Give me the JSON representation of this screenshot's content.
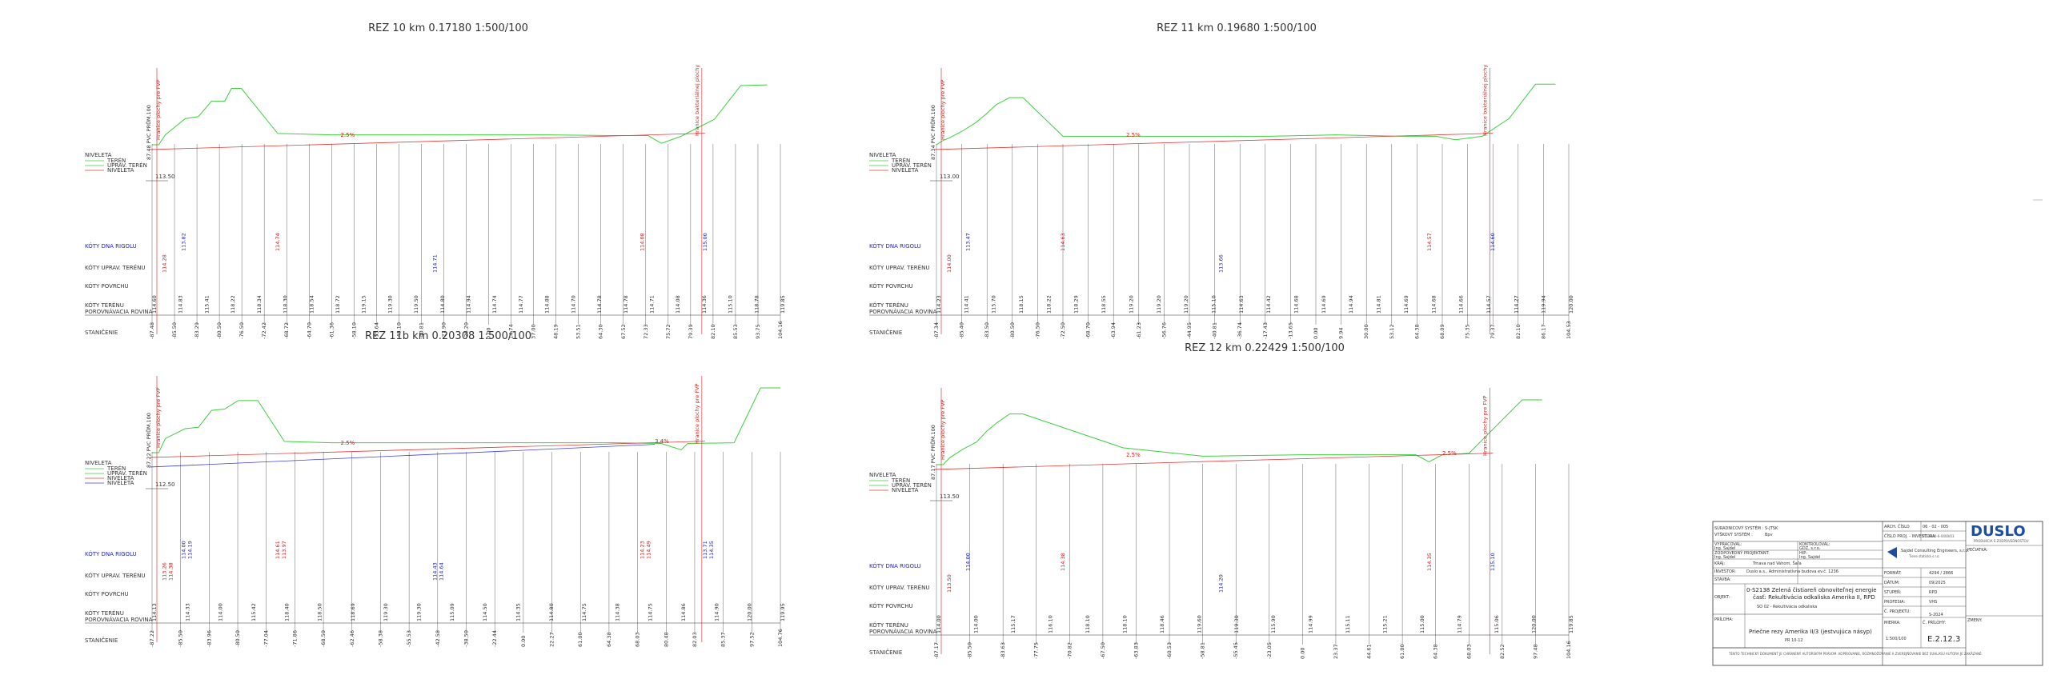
{
  "sections": [
    {
      "id": "rez10",
      "title": "REZ 10  km  0.17180  1:500/100",
      "datum": "113.50",
      "vertical_label": "87.48 PVC  PRŮM.100",
      "boundary_label": "Hranice plochy pre FVP",
      "boundary_label_right": "Hranice  bakteriálnej  plochy",
      "slope_labels": [
        "2.5%"
      ],
      "legend": [
        "TERÉN",
        "UPRAV. TERÉN",
        "NIVELETA"
      ],
      "legend_title": "NIVELETA",
      "rows": [
        "KÓTY DNA RIGOLU",
        "KÓTY UPRAV. TERÉNU",
        "KÓTY POVRCHU",
        "KÓTY TERÉNU\nPOROVNÁVACIA ROVINA",
        "STANIČENIE"
      ],
      "station_labels": [
        "-87.48",
        "-85.50",
        "-83.29",
        "-80.50",
        "-76.50",
        "-72.42",
        "-68.72",
        "-64.70",
        "-61.36",
        "-58.10",
        "-55.64",
        "-43.10",
        "-40.81",
        "-27.90",
        "-26.20",
        "0.00",
        "14.74",
        "37.00",
        "48.19",
        "53.51",
        "64.30",
        "67.52",
        "72.33",
        "75.72",
        "79.39",
        "82.10",
        "85.53",
        "93.75",
        "104.16"
      ],
      "terrain_labels": [
        "114.60",
        "114.83",
        "115.41",
        "118.22",
        "118.34",
        "118.30",
        "118.54",
        "118.72",
        "119.15",
        "119.30",
        "119.50",
        "114.80",
        "114.94",
        "114.74",
        "114.77",
        "114.88",
        "114.70",
        "114.78",
        "114.78",
        "114.71",
        "114.08",
        "114.36",
        "115.10",
        "118.78",
        "119.85"
      ],
      "special_labels": [
        "114.28",
        "113.82",
        "114.74",
        "114.71",
        "114.08",
        "115.00"
      ]
    },
    {
      "id": "rez11",
      "title": "REZ 11  km  0.19680  1:500/100",
      "datum": "113.00",
      "vertical_label": "87.34 PVC  PRŮM.100",
      "boundary_label": "Hranice plochy pre FVP",
      "boundary_label_right": "Hranice  bakteriálnej  plochy",
      "slope_labels": [
        "2.5%"
      ],
      "legend": [
        "TERÉN",
        "UPRAV. TERÉN",
        "NIVELETA"
      ],
      "legend_title": "NIVELETA",
      "rows": [
        "KÓTY DNA RIGOLU",
        "KÓTY UPRAV. TERÉNU",
        "KÓTY POVRCHU",
        "KÓTY TERÉNU\nPOROVNÁVACIA ROVINA",
        "STANIČENIE"
      ],
      "station_labels": [
        "-87.34",
        "-85.40",
        "-83.50",
        "-80.50",
        "-76.50",
        "-72.50",
        "-68.70",
        "-63.94",
        "-61.23",
        "-56.76",
        "-44.95",
        "-40.81",
        "-36.74",
        "-17.43",
        "-13.65",
        "0.00",
        "9.94",
        "30.00",
        "53.12",
        "64.38",
        "68.09",
        "75.35",
        "79.37",
        "82.10",
        "86.17",
        "104.53"
      ],
      "terrain_labels": [
        "114.23",
        "114.41",
        "115.70",
        "118.15",
        "118.22",
        "118.29",
        "118.55",
        "119.20",
        "119.20",
        "119.20",
        "115.10",
        "114.63",
        "114.42",
        "114.68",
        "114.69",
        "114.94",
        "114.81",
        "114.69",
        "114.68",
        "114.66",
        "114.57",
        "114.27",
        "119.94",
        "120.00"
      ],
      "special_labels": [
        "114.00",
        "113.47",
        "114.63",
        "113.66",
        "114.57",
        "114.60"
      ]
    },
    {
      "id": "rez11b",
      "title": "REZ 11b  km  0.20308  1:500/100",
      "datum": "112.50",
      "vertical_label": "87.22 PVC  PRŮM.100",
      "boundary_label": "Hranice plochy pre FVP",
      "boundary_label_right": "Hranice plochy pre FVP",
      "slope_labels": [
        "2.5%",
        "3.4%"
      ],
      "legend": [
        "TERÉN",
        "UPRAV. TERÉN",
        "NIVELETA",
        "NIVELETA"
      ],
      "legend_title": "NIVELETA",
      "rows": [
        "KÓTY DNA RIGOLU",
        "KÓTY UPRAV. TERÉNU",
        "KÓTY POVRCHU",
        "KÓTY TERÉNU\nPOROVNÁVACIA ROVINA",
        "STANIČENIE"
      ],
      "station_labels": [
        "-87.22",
        "-85.50",
        "-83.96",
        "-80.50",
        "-77.04",
        "-71.86",
        "-68.50",
        "-62.46",
        "-58.38",
        "-55.53",
        "-42.58",
        "-38.50",
        "-22.44",
        "0.00",
        "22.27",
        "61.00",
        "64.38",
        "68.03",
        "80.48",
        "82.03",
        "85.37",
        "97.52",
        "104.76"
      ],
      "terrain_labels": [
        "114.13",
        "114.33",
        "114.00",
        "115.42",
        "118.40",
        "118.50",
        "118.69",
        "119.30",
        "119.30",
        "115.09",
        "114.50",
        "114.35",
        "114.80",
        "114.75",
        "114.38",
        "114.75",
        "114.86",
        "114.90",
        "120.00",
        "119.95"
      ],
      "special_labels": [
        "113.26",
        "114.00",
        "114.61",
        "114.43",
        "114.23",
        "113.71",
        "114.38",
        "114.19",
        "113.97",
        "114.64",
        "114.49",
        "114.35"
      ]
    },
    {
      "id": "rez12",
      "title": "REZ 12  km  0.22429  1:500/100",
      "datum": "113.50",
      "vertical_label": "87.17 PVC  PRŮM.100",
      "boundary_label": "Hranice plochy pre FVP",
      "boundary_label_right": "Hranice plochy pre FVP",
      "slope_labels": [
        "2.5%",
        "2.5%"
      ],
      "legend": [
        "TERÉN",
        "UPRAV. TERÉN",
        "NIVELETA"
      ],
      "legend_title": "NIVELETA",
      "rows": [
        "KÓTY DNA RIGOLU",
        "KÓTY UPRAV. TERÉNU",
        "KÓTY POVRCHU",
        "KÓTY TERÉNU\nPOROVNÁVACIA ROVINA",
        "STANIČENIE"
      ],
      "station_labels": [
        "-87.17",
        "-85.50",
        "-83.63",
        "-77.75",
        "-70.82",
        "-67.50",
        "-63.83",
        "-60.53",
        "-58.81",
        "-55.45",
        "-23.05",
        "0.00",
        "23.37",
        "44.61",
        "61.00",
        "64.38",
        "68.03",
        "82.52",
        "97.48",
        "104.16"
      ],
      "terrain_labels": [
        "114.00",
        "114.00",
        "115.17",
        "116.10",
        "118.10",
        "118.10",
        "118.46",
        "119.60",
        "119.30",
        "115.90",
        "114.99",
        "115.11",
        "115.21",
        "115.00",
        "114.79",
        "115.06",
        "120.00",
        "119.85"
      ],
      "special_labels": [
        "113.50",
        "114.00",
        "114.38",
        "114.20",
        "114.35",
        "115.10"
      ]
    }
  ],
  "title_block": {
    "coord_system_label": "SÚRADNICOVÝ SYSTÉM :",
    "coord_system_value": "S-JTSK",
    "height_system_label": "VÝŠKOVÝ SYSTÉM :",
    "height_system_value": "Bpv",
    "arch_no_label": "ARCH. ČÍSLO",
    "zak_no_label": "ČÍSLO PROJ. - INVESTORA",
    "zak_no_value": "BD-1440-6-0400/03",
    "arch_no_value": "06 - 02 - 005",
    "prepared_label": "VYPRACOVAL:",
    "prepared_value": "Ing. Sajdel",
    "checked_label": "KONTROLOVAL:",
    "checked_value": "Ing. Sajdel",
    "responsible_label": "ZODPOVEDNÝ PROJEKTANT:",
    "responsible_value": "Ing. Sajdel",
    "oddiel_label": "ODDIEL:",
    "oddiel_value": "GDZ, s.r.o.",
    "hip_label": "HIP:",
    "hip_value": "Ing. Sajdel",
    "company_name": "Sajdel Consulting Engineers, s.r.o.",
    "company_sub": "Tiene statická s.r.o.",
    "kraj_label": "KRAJ:",
    "kraj_value": "Trnavský",
    "okres_label": "OKRES:",
    "okres_value": "Trnava nad Váhom, Šaľa",
    "investor_label": "INVESTOR:",
    "investor_value": "Duslo a.s., Administratívna budova ev.č. 1236",
    "stavba_label": "STAVBA:",
    "stavba_title": "0-S2138 Zelená čistiareň obnoviteľnej energie",
    "stavba_sub": "časť: Rekultivácia odkaliska Amerika II, RPD",
    "stavba_sub2": "SO 02 - Rekultivácia odkaliska",
    "objekt_label": "OBJEKT:",
    "format_label": "FORMÁT:",
    "format_value": "4294 / 2866",
    "datum_label": "DÁTUM:",
    "datum_value": "09/2025",
    "stupen_label": "STUPEŇ:",
    "stupen_value": "RPD",
    "profesia_label": "PROFESIA:",
    "profesia_value": "VHS",
    "pocet_label": "Č. PROJEKTU:",
    "pocet_value": "S-2024",
    "scale_label": "MIERKA:",
    "scale_value": "1:500/100",
    "drawing_label": "Č. PRÍLOHY:",
    "drawing_no": "E.2.12.3",
    "priloha_label": "PRÍLOHA:",
    "priloha_title": "Priečne rezy Amerika II/3 (jestvujúca násyp)",
    "priloha_sub": "PR 10-12",
    "footer_note": "TENTO TECHNICKÝ DOKUMENT JE CHRÁNENÝ AUTORSKÝM PRÁVOM. KOPÍROVANIE, ROZMNOŽOVANIE A ZVEREJŇOVANIE BEZ SÚHLASU AUTORA JE ZAKÁZANÉ.",
    "logo": "DUSLO",
    "logo_sub": "PRODUKCIA S ZODPOVEDNOSŤOU",
    "pecat_label": "PEČIATKA:",
    "zmeny_label": "ZMENY:"
  },
  "colors": {
    "terrain": "#3ecf3e",
    "niveleta": "#e03c3c",
    "niveleta2": "#4040e0",
    "labels_red": "#d42020",
    "labels_blue": "#2222cc",
    "grid": "#222222"
  }
}
